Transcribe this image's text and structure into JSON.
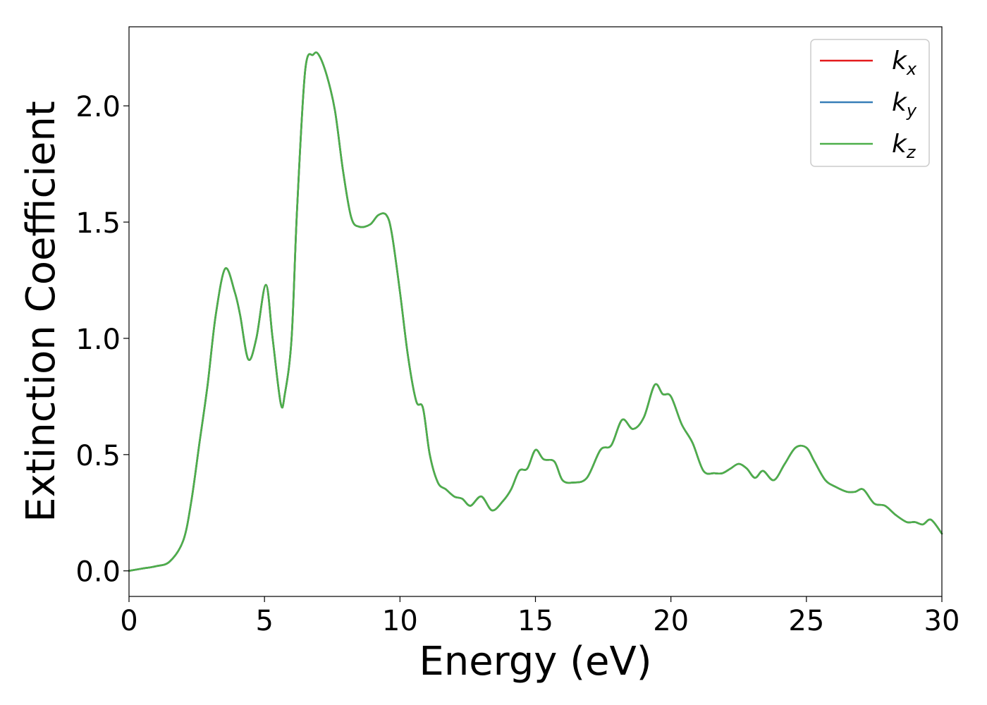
{
  "chart_data": {
    "type": "line",
    "xlabel": "Energy (eV)",
    "ylabel": "Extinction Coefficient",
    "xlim": [
      0,
      30
    ],
    "ylim": [
      -0.11,
      2.34
    ],
    "xticks": [
      0,
      5,
      10,
      15,
      20,
      25,
      30
    ],
    "xtick_labels": [
      "0",
      "5",
      "10",
      "15",
      "20",
      "25",
      "30"
    ],
    "yticks": [
      0.0,
      0.5,
      1.0,
      1.5,
      2.0
    ],
    "ytick_labels": [
      "0.0",
      "0.5",
      "1.0",
      "1.5",
      "2.0"
    ],
    "grid": false,
    "legend_position": "top-right",
    "x": [
      0,
      0.5,
      1,
      1.5,
      2,
      2.3,
      2.6,
      2.9,
      3.2,
      3.55,
      3.9,
      4.1,
      4.4,
      4.7,
      5.05,
      5.3,
      5.6,
      5.75,
      6,
      6.2,
      6.5,
      6.8,
      7.0,
      7.3,
      7.6,
      7.9,
      8.2,
      8.5,
      8.9,
      9.2,
      9.5,
      9.7,
      10.0,
      10.3,
      10.6,
      10.85,
      11.1,
      11.4,
      11.7,
      12.0,
      12.3,
      12.6,
      13.0,
      13.4,
      13.8,
      14.1,
      14.4,
      14.7,
      15.0,
      15.3,
      15.7,
      16.0,
      16.4,
      16.9,
      17.4,
      17.8,
      18.2,
      18.6,
      19.0,
      19.4,
      19.7,
      20.0,
      20.4,
      20.8,
      21.2,
      21.6,
      21.9,
      22.2,
      22.5,
      22.8,
      23.1,
      23.4,
      23.8,
      24.2,
      24.6,
      25.0,
      25.3,
      25.7,
      26.1,
      26.5,
      26.8,
      27.1,
      27.5,
      27.9,
      28.3,
      28.7,
      29.0,
      29.3,
      29.6,
      30.0
    ],
    "series": [
      {
        "name": "k_x",
        "color": "#e41a1c",
        "values": [
          0,
          0.01,
          0.02,
          0.04,
          0.13,
          0.3,
          0.55,
          0.8,
          1.1,
          1.3,
          1.2,
          1.1,
          0.91,
          1.0,
          1.23,
          1.0,
          0.72,
          0.76,
          1.0,
          1.55,
          2.15,
          2.22,
          2.22,
          2.13,
          1.98,
          1.72,
          1.52,
          1.48,
          1.49,
          1.53,
          1.53,
          1.45,
          1.2,
          0.92,
          0.73,
          0.7,
          0.5,
          0.38,
          0.35,
          0.32,
          0.31,
          0.28,
          0.32,
          0.26,
          0.3,
          0.35,
          0.43,
          0.44,
          0.52,
          0.48,
          0.47,
          0.39,
          0.38,
          0.4,
          0.52,
          0.54,
          0.65,
          0.61,
          0.66,
          0.8,
          0.76,
          0.75,
          0.63,
          0.55,
          0.43,
          0.42,
          0.42,
          0.44,
          0.46,
          0.44,
          0.4,
          0.43,
          0.39,
          0.46,
          0.53,
          0.53,
          0.47,
          0.39,
          0.36,
          0.34,
          0.34,
          0.35,
          0.29,
          0.28,
          0.24,
          0.21,
          0.21,
          0.2,
          0.22,
          0.16
        ]
      },
      {
        "name": "k_y",
        "color": "#377eb8",
        "values": [
          0,
          0.01,
          0.02,
          0.04,
          0.13,
          0.3,
          0.55,
          0.8,
          1.1,
          1.3,
          1.2,
          1.1,
          0.91,
          1.0,
          1.23,
          1.0,
          0.72,
          0.76,
          1.0,
          1.55,
          2.15,
          2.22,
          2.22,
          2.13,
          1.98,
          1.72,
          1.52,
          1.48,
          1.49,
          1.53,
          1.53,
          1.45,
          1.2,
          0.92,
          0.73,
          0.7,
          0.5,
          0.38,
          0.35,
          0.32,
          0.31,
          0.28,
          0.32,
          0.26,
          0.3,
          0.35,
          0.43,
          0.44,
          0.52,
          0.48,
          0.47,
          0.39,
          0.38,
          0.4,
          0.52,
          0.54,
          0.65,
          0.61,
          0.66,
          0.8,
          0.76,
          0.75,
          0.63,
          0.55,
          0.43,
          0.42,
          0.42,
          0.44,
          0.46,
          0.44,
          0.4,
          0.43,
          0.39,
          0.46,
          0.53,
          0.53,
          0.47,
          0.39,
          0.36,
          0.34,
          0.34,
          0.35,
          0.29,
          0.28,
          0.24,
          0.21,
          0.21,
          0.2,
          0.22,
          0.16
        ]
      },
      {
        "name": "k_z",
        "color": "#4daf4a",
        "values": [
          0,
          0.01,
          0.02,
          0.04,
          0.13,
          0.3,
          0.55,
          0.8,
          1.1,
          1.3,
          1.2,
          1.1,
          0.91,
          1.0,
          1.23,
          1.0,
          0.72,
          0.76,
          1.0,
          1.55,
          2.15,
          2.22,
          2.22,
          2.13,
          1.98,
          1.72,
          1.52,
          1.48,
          1.49,
          1.53,
          1.53,
          1.45,
          1.2,
          0.92,
          0.73,
          0.7,
          0.5,
          0.38,
          0.35,
          0.32,
          0.31,
          0.28,
          0.32,
          0.26,
          0.3,
          0.35,
          0.43,
          0.44,
          0.52,
          0.48,
          0.47,
          0.39,
          0.38,
          0.4,
          0.52,
          0.54,
          0.65,
          0.61,
          0.66,
          0.8,
          0.76,
          0.75,
          0.63,
          0.55,
          0.43,
          0.42,
          0.42,
          0.44,
          0.46,
          0.44,
          0.4,
          0.43,
          0.39,
          0.46,
          0.53,
          0.53,
          0.47,
          0.39,
          0.36,
          0.34,
          0.34,
          0.35,
          0.29,
          0.28,
          0.24,
          0.21,
          0.21,
          0.2,
          0.22,
          0.16
        ]
      }
    ],
    "legend": [
      {
        "symbol": "k",
        "subscript": "x"
      },
      {
        "symbol": "k",
        "subscript": "y"
      },
      {
        "symbol": "k",
        "subscript": "z"
      }
    ]
  }
}
